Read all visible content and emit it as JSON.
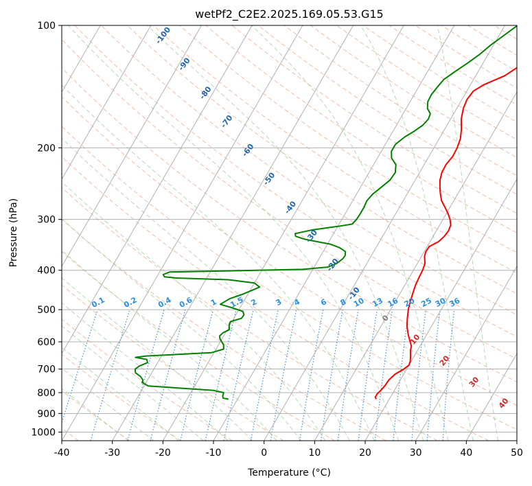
{
  "chart_data": {
    "type": "line",
    "title": "wetPf2_C2E2.2025.169.05.53.G15",
    "xlabel": "Temperature (°C)",
    "ylabel": "Pressure (hPa)",
    "xlim": [
      -40,
      50
    ],
    "ylim": [
      1050,
      100
    ],
    "y_scale": "log",
    "x_ticks": [
      "-40",
      "-30",
      "-20",
      "-10",
      "0",
      "10",
      "20",
      "30",
      "40",
      "50"
    ],
    "y_ticks": [
      "100",
      "200",
      "300",
      "400",
      "500",
      "600",
      "700",
      "800",
      "900",
      "1000"
    ],
    "grid": true,
    "series": [
      {
        "role": "temperature",
        "color": "#ff0000",
        "points": [
          [
            17.4,
            830
          ],
          [
            17.0,
            820
          ],
          [
            17.0,
            805
          ],
          [
            17.3,
            790
          ],
          [
            17.6,
            770
          ],
          [
            17.7,
            745
          ],
          [
            18.3,
            720
          ],
          [
            19.4,
            700
          ],
          [
            20.0,
            685
          ],
          [
            19.8,
            670
          ],
          [
            19.4,
            655
          ],
          [
            18.6,
            630
          ],
          [
            18.3,
            615
          ],
          [
            17.3,
            595
          ],
          [
            16.3,
            575
          ],
          [
            15.1,
            548
          ],
          [
            14.3,
            525
          ],
          [
            13.5,
            500
          ],
          [
            12.9,
            475
          ],
          [
            12.5,
            455
          ],
          [
            12.1,
            435
          ],
          [
            11.9,
            415
          ],
          [
            11.8,
            400
          ],
          [
            11.5,
            385
          ],
          [
            10.6,
            370
          ],
          [
            10.3,
            360
          ],
          [
            10.4,
            350
          ],
          [
            11.7,
            340
          ],
          [
            12.2,
            330
          ],
          [
            12.4,
            320
          ],
          [
            12.2,
            310
          ],
          [
            11.4,
            300
          ],
          [
            10.3,
            290
          ],
          [
            9.0,
            280
          ],
          [
            7.6,
            270
          ],
          [
            6.6,
            260
          ],
          [
            5.7,
            250
          ],
          [
            4.9,
            240
          ],
          [
            4.4,
            230
          ],
          [
            4.3,
            220
          ],
          [
            4.7,
            210
          ],
          [
            4.6,
            200
          ],
          [
            4.2,
            190
          ],
          [
            3.3,
            180
          ],
          [
            2.1,
            170
          ],
          [
            1.3,
            160
          ],
          [
            1.0,
            152
          ],
          [
            1.3,
            145
          ],
          [
            2.6,
            140
          ],
          [
            5.7,
            133
          ],
          [
            7.5,
            126
          ],
          [
            8.6,
            119
          ],
          [
            9.5,
            112
          ],
          [
            10.3,
            106
          ],
          [
            10.6,
            100
          ]
        ]
      },
      {
        "role": "dewpoint",
        "color": "#008000",
        "points": [
          [
            -11.8,
            830
          ],
          [
            -13.0,
            825
          ],
          [
            -13.3,
            815
          ],
          [
            -13.5,
            800
          ],
          [
            -15.7,
            790
          ],
          [
            -29.2,
            770
          ],
          [
            -30.8,
            755
          ],
          [
            -30.9,
            745
          ],
          [
            -31.8,
            730
          ],
          [
            -33.2,
            715
          ],
          [
            -33.7,
            700
          ],
          [
            -33.2,
            688
          ],
          [
            -32.0,
            675
          ],
          [
            -32.5,
            663
          ],
          [
            -35.0,
            655
          ],
          [
            -33.0,
            650
          ],
          [
            -20.5,
            638
          ],
          [
            -18.5,
            625
          ],
          [
            -19.0,
            610
          ],
          [
            -19.7,
            600
          ],
          [
            -20.4,
            590
          ],
          [
            -20.8,
            580
          ],
          [
            -20.5,
            570
          ],
          [
            -19.6,
            560
          ],
          [
            -20.2,
            545
          ],
          [
            -20.3,
            535
          ],
          [
            -18.5,
            525
          ],
          [
            -18.4,
            515
          ],
          [
            -19.0,
            505
          ],
          [
            -21.5,
            495
          ],
          [
            -24.3,
            485
          ],
          [
            -23.1,
            470
          ],
          [
            -21.0,
            458
          ],
          [
            -19.6,
            448
          ],
          [
            -18.5,
            440
          ],
          [
            -20.0,
            430
          ],
          [
            -25.5,
            422
          ],
          [
            -36.0,
            418
          ],
          [
            -38.5,
            415
          ],
          [
            -39.0,
            410
          ],
          [
            -38.0,
            404
          ],
          [
            -29.0,
            402
          ],
          [
            -21.0,
            400
          ],
          [
            -12.0,
            398
          ],
          [
            -7.3,
            393
          ],
          [
            -6.0,
            385
          ],
          [
            -5.3,
            375
          ],
          [
            -5.2,
            368
          ],
          [
            -5.6,
            360
          ],
          [
            -7.2,
            352
          ],
          [
            -9.5,
            345
          ],
          [
            -12.5,
            340
          ],
          [
            -15.3,
            335
          ],
          [
            -17.2,
            330
          ],
          [
            -17.6,
            325
          ],
          [
            -14.5,
            318
          ],
          [
            -10.0,
            312
          ],
          [
            -7.4,
            308
          ],
          [
            -7.1,
            300
          ],
          [
            -7.0,
            290
          ],
          [
            -7.0,
            280
          ],
          [
            -7.2,
            270
          ],
          [
            -6.8,
            260
          ],
          [
            -5.9,
            250
          ],
          [
            -5.0,
            240
          ],
          [
            -4.8,
            230
          ],
          [
            -5.6,
            220
          ],
          [
            -7.2,
            212
          ],
          [
            -8.0,
            204
          ],
          [
            -8.0,
            196
          ],
          [
            -7.0,
            188
          ],
          [
            -5.8,
            182
          ],
          [
            -4.8,
            176
          ],
          [
            -4.4,
            170
          ],
          [
            -4.6,
            165
          ],
          [
            -5.8,
            160
          ],
          [
            -6.5,
            154
          ],
          [
            -6.6,
            148
          ],
          [
            -6.3,
            142
          ],
          [
            -5.9,
            136
          ],
          [
            -4.6,
            130
          ],
          [
            -3.1,
            124
          ],
          [
            -1.7,
            118
          ],
          [
            -0.6,
            112
          ],
          [
            0.9,
            106
          ],
          [
            2.5,
            100
          ]
        ]
      }
    ],
    "dry_adiabat_labels": [
      "-100",
      "-90",
      "-80",
      "-70",
      "-60",
      "-50",
      "-40",
      "-30",
      "-20",
      "-10"
    ],
    "mixing_ratio_labels": [
      "0.1",
      "0.2",
      "0.4",
      "0.6",
      "1",
      "1.5",
      "2",
      "3",
      "4",
      "6",
      "8",
      "10",
      "13",
      "16",
      "20",
      "25",
      "30",
      "36"
    ],
    "moist_adiabat_labels": [
      "0",
      "10",
      "20",
      "30",
      "40"
    ],
    "colors": {
      "temperature": "#ff0000",
      "dewpoint": "#008000",
      "isotherm": "#b0b0b0",
      "isobar": "#b0b0b0",
      "dry_adiabat": "#f4a582",
      "moist_adiabat": "#9fd29f",
      "mixing_ratio": "#3a8fd8",
      "dry_label": "#2166ac",
      "mix_label": "#2a8fe0",
      "moist_label": "#d62728",
      "zero_label": "#7f7f7f"
    }
  }
}
